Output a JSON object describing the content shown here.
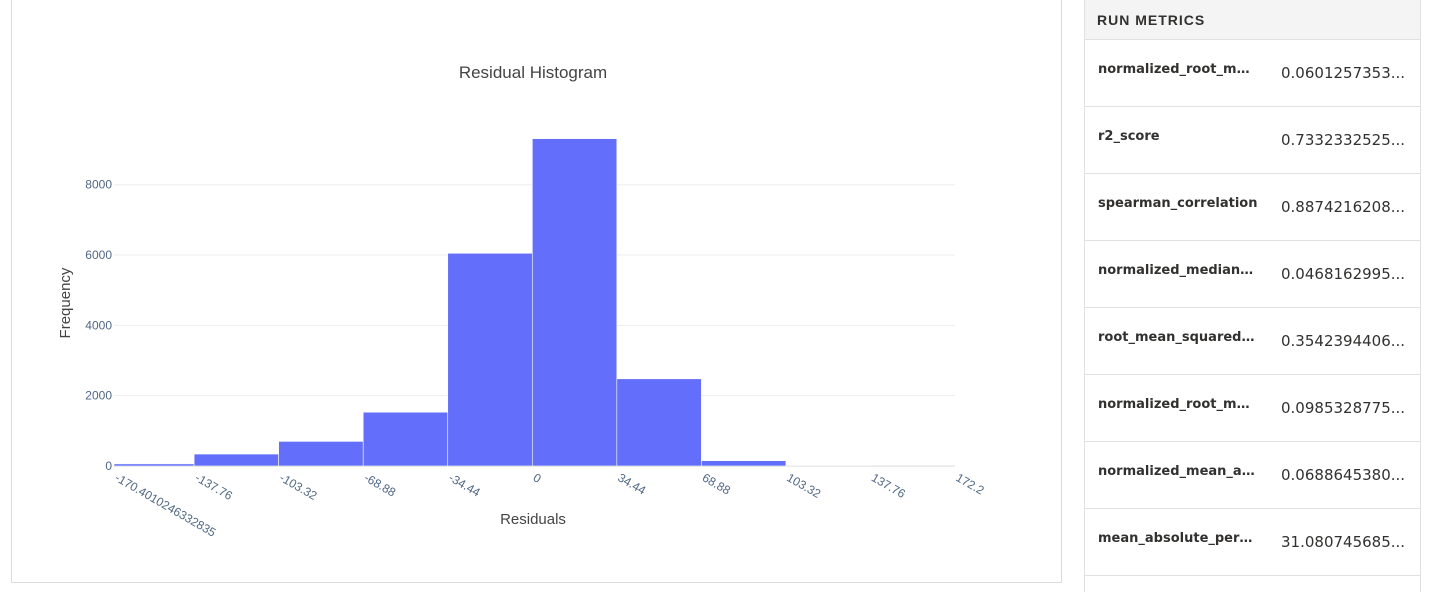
{
  "chart_data": {
    "type": "bar",
    "title": "Residual Histogram",
    "xlabel": "Residuals",
    "ylabel": "Frequency",
    "xlim": [
      -170.4,
      172.2
    ],
    "ylim": [
      0,
      9300
    ],
    "x_tick_labels": [
      "-170.4010246332835",
      "-137.76",
      "-103.32",
      "-68.88",
      "-34.44",
      "0",
      "34.44",
      "68.88",
      "103.32",
      "137.76",
      "172.2"
    ],
    "x_tick_values": [
      -170.4,
      -137.76,
      -103.32,
      -68.88,
      -34.44,
      0,
      34.44,
      68.88,
      103.32,
      137.76,
      172.2
    ],
    "y_ticks": [
      0,
      2000,
      4000,
      6000,
      8000
    ],
    "bins": [
      {
        "x0": -170.4,
        "x1": -137.76,
        "value": 60
      },
      {
        "x0": -137.76,
        "x1": -103.32,
        "value": 340
      },
      {
        "x0": -103.32,
        "x1": -68.88,
        "value": 700
      },
      {
        "x0": -68.88,
        "x1": -34.44,
        "value": 1530
      },
      {
        "x0": -34.44,
        "x1": 0,
        "value": 6050
      },
      {
        "x0": 0,
        "x1": 34.44,
        "value": 9310
      },
      {
        "x0": 34.44,
        "x1": 68.88,
        "value": 2480
      },
      {
        "x0": 68.88,
        "x1": 103.32,
        "value": 150
      },
      {
        "x0": 103.32,
        "x1": 137.76,
        "value": 10
      },
      {
        "x0": 137.76,
        "x1": 172.2,
        "value": 5
      }
    ],
    "bar_color": "#636efa",
    "grid": true
  },
  "metrics": {
    "header": "RUN METRICS",
    "rows": [
      {
        "name": "normalized_root_me...",
        "value": "0.0601257353..."
      },
      {
        "name": "r2_score",
        "value": "0.7332332525..."
      },
      {
        "name": "spearman_correlation",
        "value": "0.8874216208..."
      },
      {
        "name": "normalized_median_...",
        "value": "0.0468162995..."
      },
      {
        "name": "root_mean_squared_l...",
        "value": "0.3542394406..."
      },
      {
        "name": "normalized_root_me...",
        "value": "0.0985328775..."
      },
      {
        "name": "normalized_mean_ab...",
        "value": "0.0688645380..."
      },
      {
        "name": "mean_absolute_perc...",
        "value": "31.080745685..."
      }
    ]
  }
}
